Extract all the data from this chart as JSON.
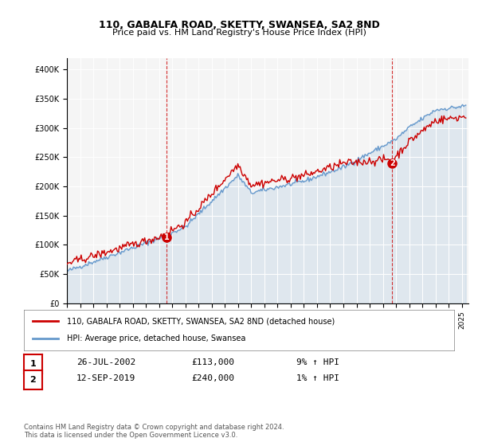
{
  "title_line1": "110, GABALFA ROAD, SKETTY, SWANSEA, SA2 8ND",
  "title_line2": "Price paid vs. HM Land Registry's House Price Index (HPI)",
  "ylabel_ticks": [
    "£0",
    "£50K",
    "£100K",
    "£150K",
    "£200K",
    "£250K",
    "£300K",
    "£350K",
    "£400K"
  ],
  "ylim": [
    0,
    420000
  ],
  "yticks": [
    0,
    50000,
    100000,
    150000,
    200000,
    250000,
    300000,
    350000,
    400000
  ],
  "xmin": 1995.0,
  "xmax": 2025.5,
  "sale1_date": 2002.56,
  "sale1_price": 113000,
  "sale1_label": "1",
  "sale2_date": 2019.71,
  "sale2_price": 240000,
  "sale2_label": "2",
  "legend_line1": "110, GABALFA ROAD, SKETTY, SWANSEA, SA2 8ND (detached house)",
  "legend_line2": "HPI: Average price, detached house, Swansea",
  "table_row1_num": "1",
  "table_row1_date": "26-JUL-2002",
  "table_row1_price": "£113,000",
  "table_row1_hpi": "9% ↑ HPI",
  "table_row2_num": "2",
  "table_row2_date": "12-SEP-2019",
  "table_row2_price": "£240,000",
  "table_row2_hpi": "1% ↑ HPI",
  "footnote": "Contains HM Land Registry data © Crown copyright and database right 2024.\nThis data is licensed under the Open Government Licence v3.0.",
  "color_red": "#cc0000",
  "color_blue": "#6699cc",
  "color_dashed_red": "#cc0000",
  "bg_color": "#ffffff",
  "plot_bg": "#f5f5f5"
}
